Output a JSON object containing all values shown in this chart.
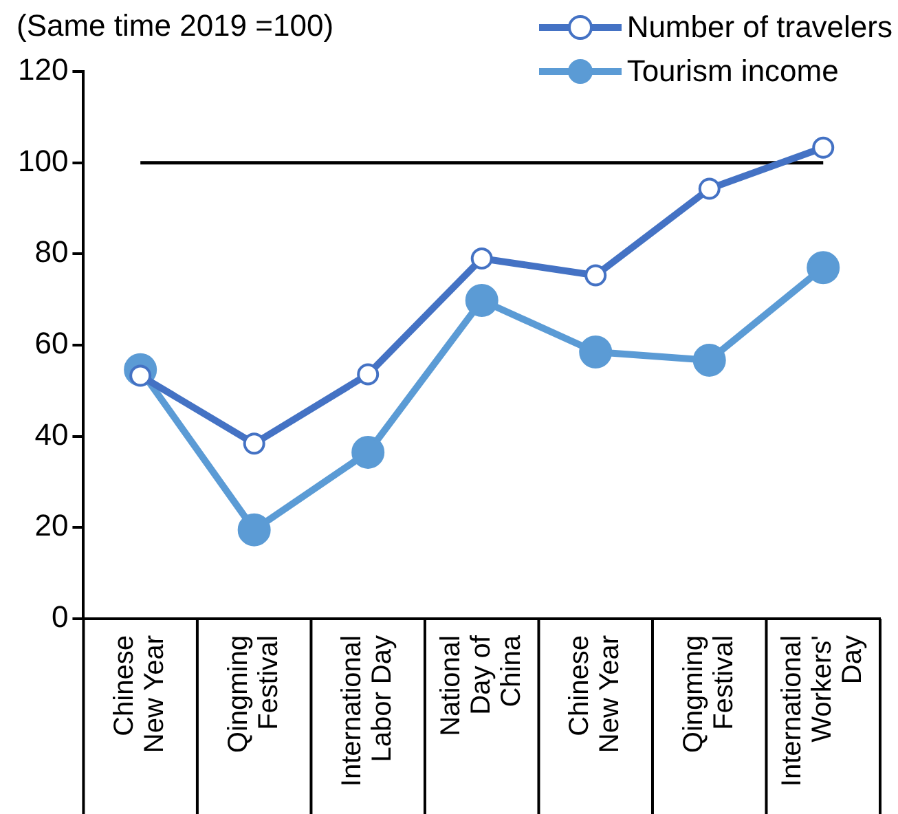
{
  "chart_data": {
    "type": "line",
    "subtitle": "(Same time 2019 =100)",
    "categories": [
      "Chinese New Year",
      "Qingming Festival",
      "International Labor Day",
      "National Day of China",
      "Chinese New Year",
      "Qingming Festival",
      "International Workers' Day"
    ],
    "series": [
      {
        "name": "Number of travelers",
        "color": "#4472c4",
        "marker": "circle",
        "values": [
          53.3,
          38.4,
          53.6,
          79,
          75.3,
          94.3,
          103.3
        ]
      },
      {
        "name": "Tourism income",
        "color": "#5b9bd5",
        "marker": "circle",
        "values": [
          54.6,
          19.5,
          36.5,
          69.8,
          58.5,
          56.7,
          77
        ]
      }
    ],
    "ylim": [
      0,
      120
    ],
    "yticks": [
      0,
      20,
      40,
      60,
      80,
      100,
      120
    ],
    "grid": false,
    "legend": "top right",
    "ref_lines": [
      {
        "axis": "y",
        "value": 100,
        "color": "#000000"
      }
    ]
  }
}
